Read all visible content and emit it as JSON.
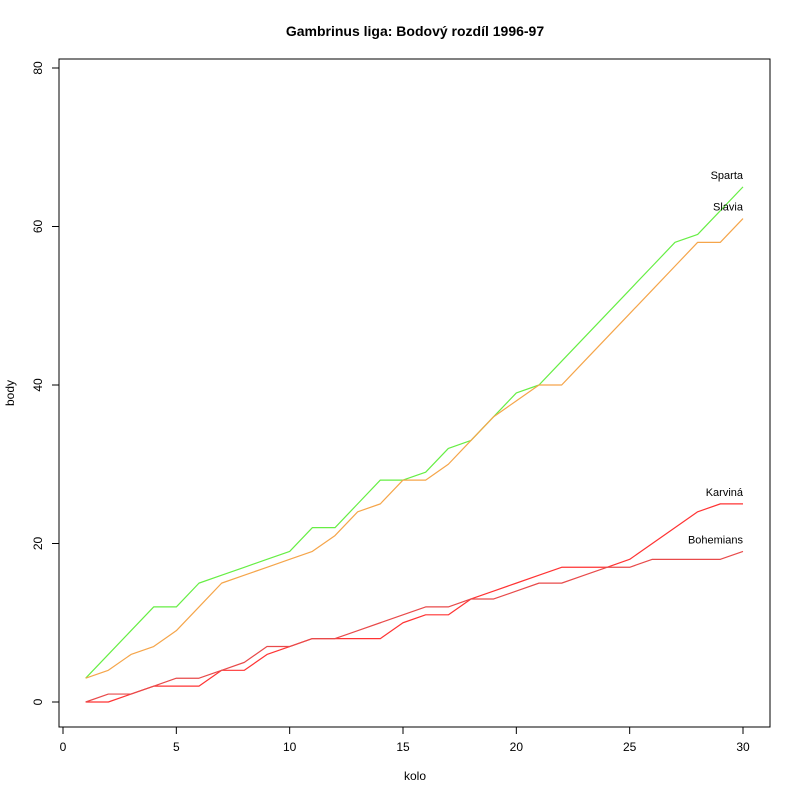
{
  "chart_data": {
    "type": "line",
    "title": "Gambrinus liga: Bodový rozdíl 1996-97",
    "xlabel": "kolo",
    "ylabel": "body",
    "xlim": [
      1,
      30
    ],
    "ylim": [
      0,
      80
    ],
    "x_ticks": [
      0,
      5,
      10,
      15,
      20,
      25,
      30
    ],
    "y_ticks": [
      0,
      20,
      40,
      60,
      80
    ],
    "grid": false,
    "legend": "none",
    "x": [
      1,
      2,
      3,
      4,
      5,
      6,
      7,
      8,
      9,
      10,
      11,
      12,
      13,
      14,
      15,
      16,
      17,
      18,
      19,
      20,
      21,
      22,
      23,
      24,
      25,
      26,
      27,
      28,
      29,
      30
    ],
    "series": [
      {
        "name": "Sparta",
        "color": "#66ee44",
        "values": [
          3,
          6,
          9,
          12,
          12,
          15,
          16,
          17,
          18,
          19,
          22,
          22,
          25,
          28,
          28,
          29,
          32,
          33,
          36,
          39,
          40,
          43,
          46,
          49,
          52,
          55,
          58,
          59,
          62,
          65
        ]
      },
      {
        "name": "Slavia",
        "color": "#f5a54a",
        "values": [
          3,
          4,
          6,
          7,
          9,
          12,
          15,
          16,
          17,
          18,
          19,
          21,
          24,
          25,
          28,
          28,
          30,
          33,
          36,
          38,
          40,
          40,
          43,
          46,
          49,
          52,
          55,
          58,
          58,
          61
        ]
      },
      {
        "name": "Karviná",
        "color": "#ff3333",
        "values": [
          0,
          0,
          1,
          2,
          2,
          2,
          4,
          4,
          6,
          7,
          8,
          8,
          8,
          8,
          10,
          11,
          11,
          13,
          14,
          15,
          16,
          17,
          17,
          17,
          18,
          20,
          22,
          24,
          25,
          25
        ]
      },
      {
        "name": "Bohemians",
        "color": "#e84a4a",
        "values": [
          0,
          1,
          1,
          2,
          3,
          3,
          4,
          5,
          7,
          7,
          8,
          8,
          9,
          10,
          11,
          12,
          12,
          13,
          13,
          14,
          15,
          15,
          16,
          17,
          17,
          18,
          18,
          18,
          18,
          19
        ]
      }
    ]
  }
}
